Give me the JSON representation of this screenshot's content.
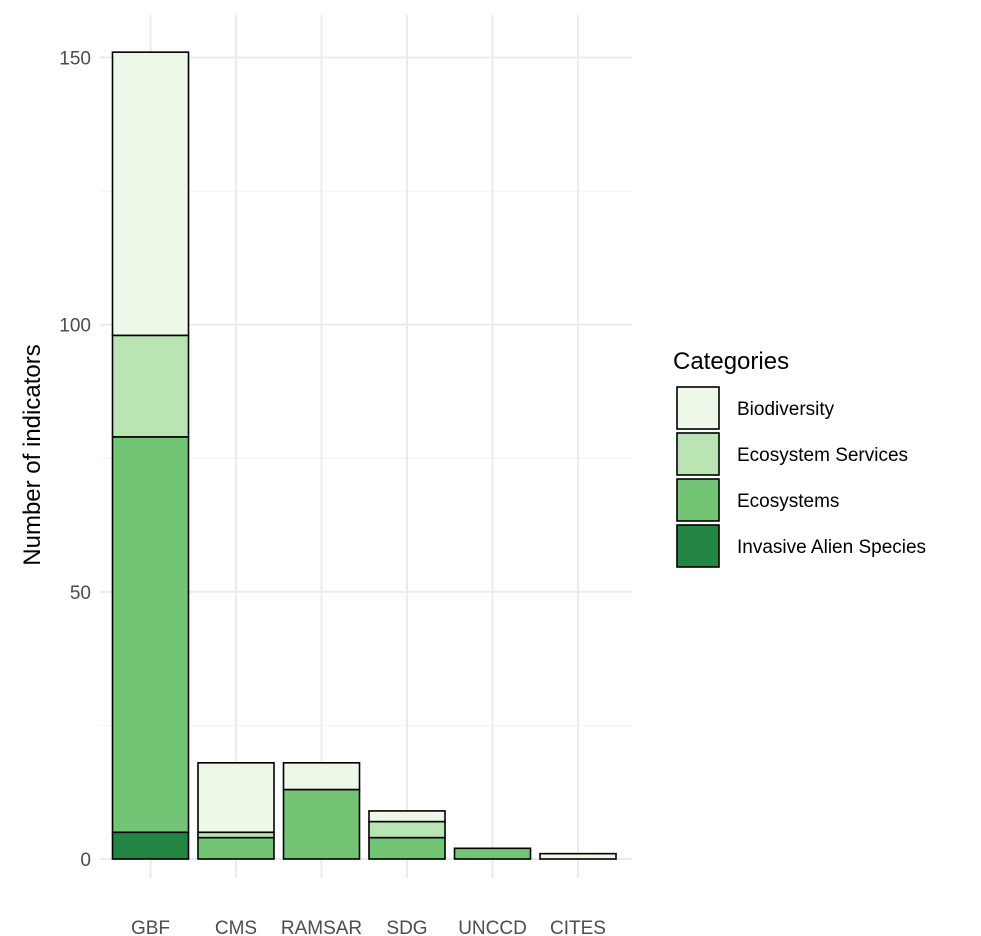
{
  "chart_data": {
    "type": "bar",
    "stacked": true,
    "categories": [
      "GBF",
      "CMS",
      "RAMSAR",
      "SDG",
      "UNCCD",
      "CITES"
    ],
    "series": [
      {
        "name": "Invasive Alien Species",
        "color": "#238443",
        "values": [
          5,
          0,
          0,
          0,
          0,
          0
        ]
      },
      {
        "name": "Ecosystems",
        "color": "#74c476",
        "values": [
          74,
          4,
          13,
          4,
          2,
          0
        ]
      },
      {
        "name": "Ecosystem Services",
        "color": "#bae4b3",
        "values": [
          19,
          1,
          0,
          3,
          0,
          0
        ]
      },
      {
        "name": "Biodiversity",
        "color": "#edf8e9",
        "values": [
          53,
          13,
          5,
          2,
          0,
          1
        ]
      }
    ],
    "xlabel": "",
    "ylabel": "Number of indicators",
    "ylim": [
      0,
      155
    ],
    "yticks": [
      0,
      50,
      100,
      150
    ],
    "grid": true,
    "legend": {
      "title": "Categories",
      "placement": "right",
      "entries": [
        "Biodiversity",
        "Ecosystem Services",
        "Ecosystems",
        "Invasive Alien Species"
      ]
    }
  }
}
